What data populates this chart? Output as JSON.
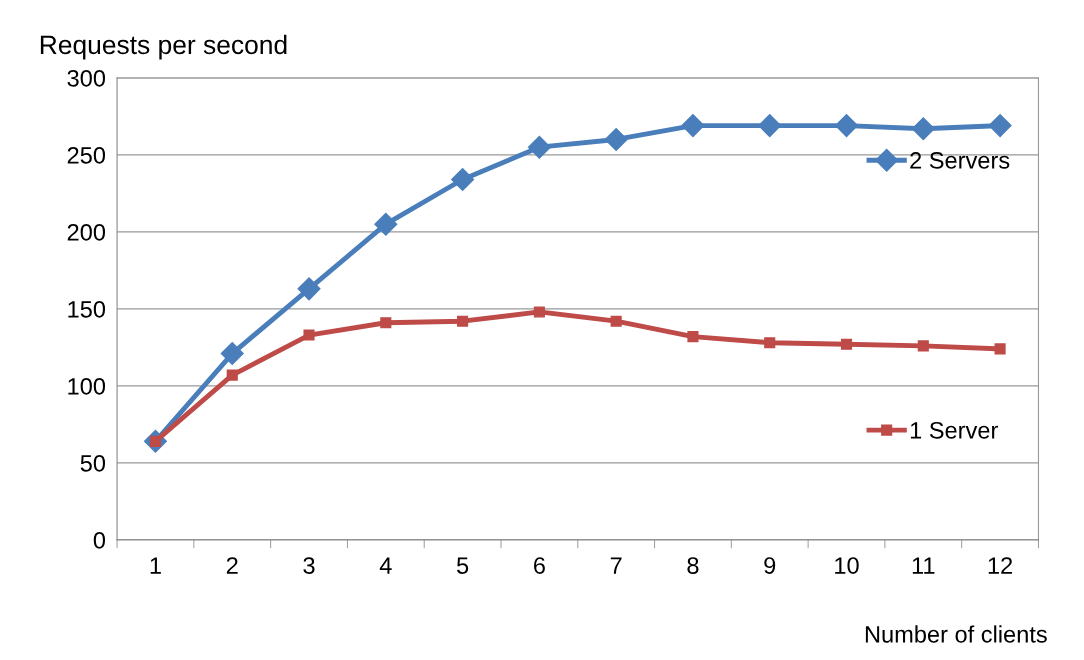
{
  "chart_data": {
    "type": "line",
    "ylabel": "Requests per second",
    "xlabel": "Number of clients",
    "categories": [
      "1",
      "2",
      "3",
      "4",
      "5",
      "6",
      "7",
      "8",
      "9",
      "10",
      "11",
      "12"
    ],
    "series": [
      {
        "name": "2 Servers",
        "color": "#4a7ebb",
        "marker": "diamond",
        "values": [
          64,
          121,
          163,
          205,
          234,
          255,
          260,
          269,
          269,
          269,
          267,
          269
        ]
      },
      {
        "name": "1 Server",
        "color": "#be4b48",
        "marker": "square",
        "values": [
          64,
          107,
          133,
          141,
          142,
          148,
          142,
          132,
          128,
          127,
          126,
          124
        ]
      }
    ],
    "ylim": [
      0,
      300
    ],
    "yticks": [
      0,
      50,
      100,
      150,
      200,
      250,
      300
    ],
    "grid": "y",
    "legend": "right",
    "line_style": "solid"
  }
}
